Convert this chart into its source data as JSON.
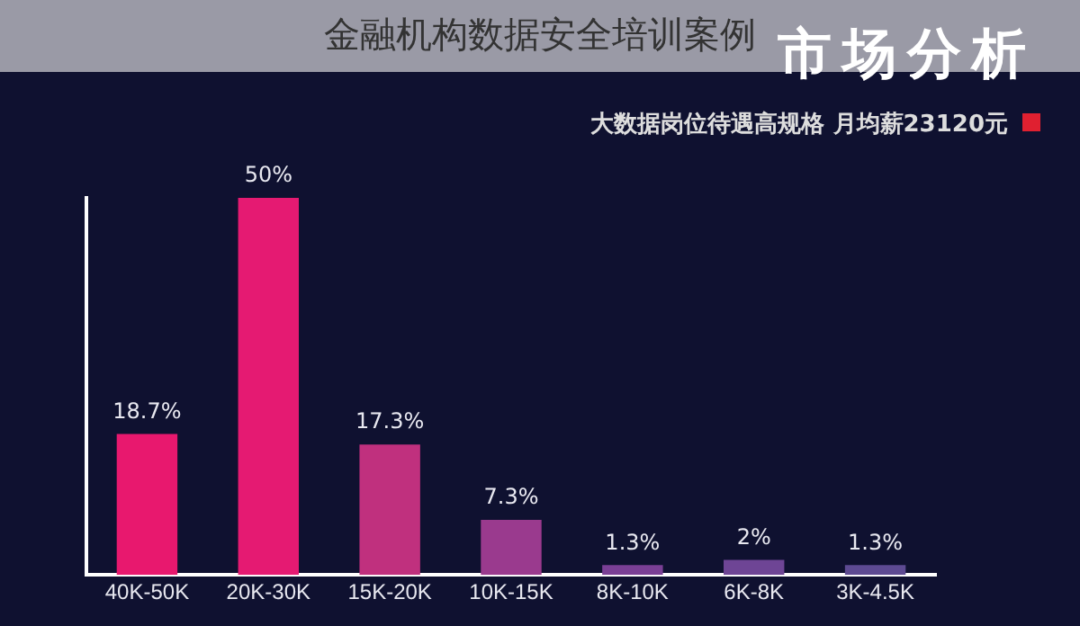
{
  "chart_data": {
    "type": "bar",
    "title": "金融机构数据安全培训案例",
    "subtitle": "市场分析",
    "annotations": [
      "大数据岗位待遇高规格 月均薪23120元"
    ],
    "categories": [
      "40K-50K",
      "20K-30K",
      "15K-20K",
      "10K-15K",
      "8K-10K",
      "6K-8K",
      "3K-4.5K"
    ],
    "values": [
      18.7,
      50,
      17.3,
      7.3,
      1.3,
      2,
      1.3
    ],
    "value_labels": [
      "18.7%",
      "50%",
      "17.3%",
      "7.3%",
      "1.3%",
      "2%",
      "1.3%"
    ],
    "colors": [
      "#e8186e",
      "#e51a72",
      "#c0307e",
      "#9a3a8e",
      "#7a3f95",
      "#6e4595",
      "#5d4a92"
    ],
    "tick_labels": "x",
    "grid": false,
    "legend": false
  }
}
